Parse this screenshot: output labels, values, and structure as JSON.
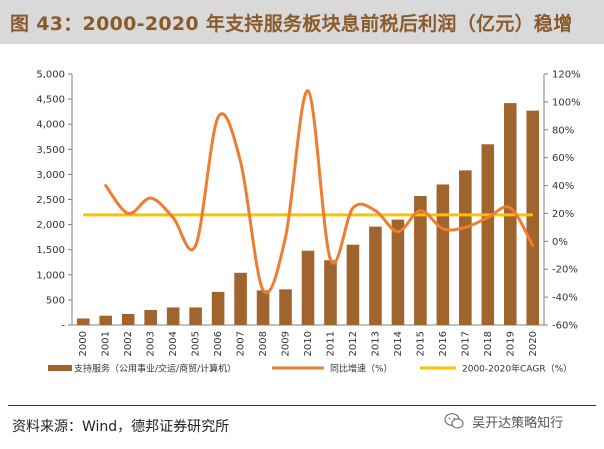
{
  "header": {
    "title": "图 43：2000-2020 年支持服务板块息前税后利润（亿元）稳增"
  },
  "footer": {
    "source": "资料来源：Wind，德邦证券研究所",
    "watermark": "吴开达策略知行"
  },
  "colors": {
    "bar": "#a0642e",
    "growth_line": "#ed7d31",
    "cagr_line": "#ffc000",
    "title": "#8b5a2b"
  },
  "chart_data": {
    "type": "bar",
    "title": "2000-2020 年支持服务板块息前税后利润（亿元）稳增",
    "categories": [
      "2000",
      "2001",
      "2002",
      "2003",
      "2004",
      "2005",
      "2006",
      "2007",
      "2008",
      "2009",
      "2010",
      "2011",
      "2012",
      "2013",
      "2014",
      "2015",
      "2016",
      "2017",
      "2018",
      "2019",
      "2020"
    ],
    "series": [
      {
        "name": "支持服务（公用事业/交运/商贸/计算机）",
        "type": "bar",
        "axis": "left",
        "values": [
          130,
          185,
          220,
          300,
          350,
          350,
          660,
          1040,
          690,
          710,
          1480,
          1290,
          1600,
          1960,
          2100,
          2570,
          2800,
          3080,
          3600,
          4420,
          4270
        ]
      },
      {
        "name": "同比增速（%）",
        "type": "line",
        "axis": "right",
        "smooth": true,
        "values": [
          null,
          40,
          20,
          31,
          17,
          -3,
          89,
          57,
          -35,
          3,
          108,
          -13,
          24,
          22,
          7,
          22,
          9,
          10,
          17,
          24,
          -3
        ]
      },
      {
        "name": "2000-2020年CAGR（%）",
        "type": "line",
        "axis": "right",
        "values": [
          19,
          19,
          19,
          19,
          19,
          19,
          19,
          19,
          19,
          19,
          19,
          19,
          19,
          19,
          19,
          19,
          19,
          19,
          19,
          19,
          19
        ]
      }
    ],
    "y_left": {
      "min": 0,
      "max": 5000,
      "step": 500,
      "tick_labels": [
        "-",
        "500",
        "1,000",
        "1,500",
        "2,000",
        "2,500",
        "3,000",
        "3,500",
        "4,000",
        "4,500",
        "5,000"
      ]
    },
    "y_right": {
      "min": -60,
      "max": 120,
      "step": 20,
      "tick_labels": [
        "-60%",
        "-40%",
        "-20%",
        "0%",
        "20%",
        "40%",
        "60%",
        "80%",
        "100%",
        "120%"
      ]
    },
    "grid": false,
    "legend": "bottom",
    "legend_labels": [
      "支持服务（公用事业/交运/商贸/计算机）",
      "同比增速（%）",
      "2000-2020年CAGR（%）"
    ]
  }
}
